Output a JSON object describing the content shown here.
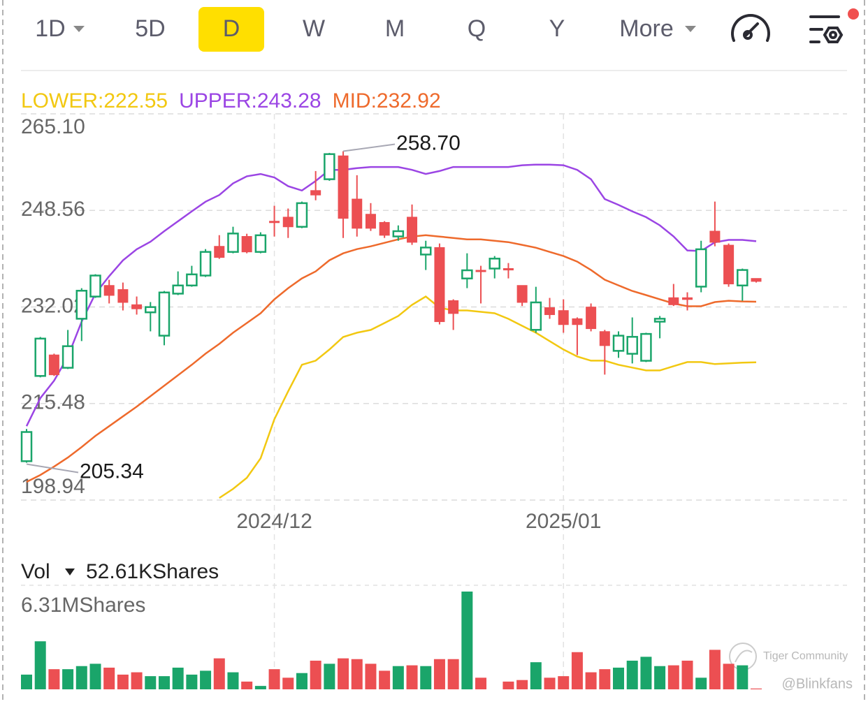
{
  "toolbar": {
    "tabs": [
      "1D",
      "5D",
      "D",
      "W",
      "M",
      "Q",
      "Y",
      "More"
    ],
    "active_tab": "D"
  },
  "watermark": {
    "brand": "Tiger Community",
    "user": "@Blinkfans"
  },
  "chart_data": [
    {
      "type": "candlestick",
      "categories": [
        null,
        null,
        null,
        null,
        null,
        null,
        null,
        null,
        null,
        null,
        null,
        null,
        null,
        null,
        null,
        null,
        null,
        null,
        "2024/12",
        null,
        null,
        null,
        null,
        null,
        null,
        null,
        null,
        null,
        null,
        null,
        null,
        null,
        null,
        null,
        null,
        null,
        null,
        null,
        null,
        "2025/01",
        null,
        null,
        null,
        null,
        null,
        null,
        null,
        null,
        null,
        null,
        null,
        null,
        null,
        null
      ],
      "open": [
        205.6,
        220.2,
        223.8,
        221.6,
        230.0,
        233.8,
        235.7,
        235.0,
        232.4,
        231.1,
        227.1,
        234.3,
        235.7,
        237.4,
        242.4,
        241.45,
        244.1,
        241.45,
        246.7,
        247.4,
        245.75,
        251.96,
        253.9,
        257.9,
        250.5,
        247.9,
        246.5,
        244.1,
        247.4,
        241.0,
        242.2,
        233.1,
        236.9,
        238.3,
        238.6,
        238.6,
        235.7,
        228.1,
        231.9,
        231.4,
        230.0,
        232.0,
        227.8,
        224.5,
        224.0,
        222.8,
        229.5,
        233.6,
        233.6,
        235.5,
        245.0,
        242.6,
        235.7,
        236.9
      ],
      "high": [
        211.12,
        226.88,
        224.02,
        228.08,
        235.24,
        237.63,
        236.67,
        236.2,
        233.81,
        232.86,
        234.76,
        238.11,
        239.07,
        241.93,
        244.32,
        245.76,
        244.56,
        244.81,
        249.35,
        248.88,
        250.07,
        255.3,
        258.41,
        258.7,
        254.59,
        249.81,
        246.71,
        245.99,
        249.57,
        243.36,
        242.89,
        233.33,
        241.21,
        239.07,
        240.74,
        239.54,
        235.72,
        235.48,
        233.57,
        233.33,
        230.23,
        232.62,
        228.08,
        227.84,
        230.23,
        227.6,
        230.47,
        235.96,
        234.53,
        243.36,
        250.07,
        242.89,
        238.59,
        236.91
      ],
      "low": [
        205.34,
        219.96,
        220.2,
        221.39,
        226.17,
        233.57,
        232.62,
        231.42,
        230.71,
        227.84,
        225.45,
        234.05,
        235.48,
        237.15,
        240.26,
        241.21,
        241.21,
        241.21,
        244.08,
        243.84,
        245.52,
        250.29,
        253.63,
        243.84,
        244.08,
        245.04,
        243.84,
        243.36,
        242.65,
        238.35,
        229.03,
        228.08,
        235.24,
        232.62,
        236.91,
        236.91,
        232.18,
        227.6,
        229.99,
        227.6,
        223.78,
        227.84,
        220.43,
        223.3,
        222.35,
        222.58,
        226.65,
        232.18,
        231.42,
        234.53,
        242.41,
        235.48,
        233.09,
        236.2
      ],
      "close": [
        210.6,
        226.6,
        220.4,
        225.3,
        234.8,
        237.4,
        234.0,
        232.8,
        231.7,
        232.0,
        234.5,
        235.7,
        237.6,
        241.45,
        240.5,
        244.6,
        241.45,
        244.3,
        246.5,
        245.75,
        249.8,
        251.2,
        258.2,
        247.2,
        245.5,
        245.5,
        244.3,
        245.0,
        243.1,
        242.2,
        229.5,
        230.9,
        238.3,
        238.1,
        240.3,
        238.35,
        232.8,
        232.8,
        230.7,
        229.0,
        229.0,
        228.3,
        225.4,
        227.1,
        226.9,
        227.4,
        230.0,
        232.4,
        233.3,
        241.9,
        243.1,
        235.96,
        238.35,
        236.4
      ],
      "high_label": "258.70",
      "up_color": "#1aa56a",
      "down_color": "#ec4f52",
      "series": [
        {
          "name": "LOWER:",
          "color": "#f2c811",
          "values": [
            null,
            null,
            null,
            null,
            null,
            null,
            null,
            null,
            null,
            null,
            null,
            null,
            null,
            null,
            199.3,
            200.85,
            202.76,
            206.1,
            212.79,
            217.57,
            222.11,
            222.82,
            224.73,
            226.88,
            227.6,
            228.08,
            229.27,
            230.47,
            232.38,
            233.81,
            231.9,
            231.42,
            231.42,
            231.18,
            230.94,
            229.99,
            228.79,
            227.6,
            226.17,
            224.73,
            223.54,
            222.82,
            222.82,
            222.11,
            221.63,
            221.15,
            221.15,
            221.87,
            222.58,
            222.58,
            222.23,
            222.35,
            222.47,
            222.55
          ]
        },
        {
          "name": "UPPER:",
          "color": "#9b45e4",
          "values": [
            211.6,
            216.4,
            219.4,
            223.5,
            229.5,
            234.3,
            237.3,
            240.0,
            241.9,
            243.2,
            245.0,
            246.7,
            248.4,
            250.05,
            251.2,
            253.2,
            254.4,
            254.8,
            254.2,
            252.7,
            251.96,
            253.6,
            255.5,
            255.5,
            255.8,
            256.0,
            256.0,
            256.0,
            255.5,
            254.8,
            255.3,
            256.0,
            256.0,
            256.0,
            256.0,
            256.0,
            256.3,
            256.4,
            256.4,
            256.3,
            255.5,
            253.9,
            250.5,
            249.5,
            248.4,
            247.4,
            246.0,
            244.1,
            241.7,
            241.6,
            243.1,
            243.5,
            243.5,
            243.28
          ]
        },
        {
          "name": "MID:",
          "color": "#ee6a2c",
          "values": [
            202.05,
            203.24,
            204.67,
            206.22,
            208.02,
            209.93,
            211.6,
            213.27,
            214.94,
            216.73,
            218.52,
            220.32,
            222.11,
            224.02,
            225.69,
            227.6,
            229.27,
            230.94,
            233.33,
            235.24,
            236.91,
            238.11,
            240.02,
            241.21,
            241.93,
            242.41,
            243.0,
            243.6,
            244.08,
            244.32,
            244.08,
            243.84,
            243.6,
            243.6,
            243.36,
            243.12,
            242.65,
            242.17,
            241.45,
            240.74,
            239.78,
            238.35,
            236.68,
            235.72,
            234.76,
            234.05,
            233.33,
            232.62,
            232.14,
            232.14,
            232.86,
            233.09,
            232.97,
            232.92
          ]
        }
      ],
      "ylim": [
        198.94,
        265.1
      ],
      "yticks": [
        {
          "value": 265.1,
          "label": "265.10"
        },
        248.56,
        232.02,
        215.48,
        198.94
      ],
      "grid": true
    },
    {
      "type": "bar",
      "title": "Vol",
      "values": [
        0.95,
        3.1,
        1.3,
        1.3,
        1.5,
        1.65,
        1.4,
        0.95,
        1.1,
        0.85,
        0.85,
        1.4,
        0.95,
        1.2,
        2.0,
        1.1,
        0.5,
        0.22,
        1.3,
        0.75,
        1.05,
        1.85,
        1.65,
        2.0,
        1.95,
        1.65,
        1.2,
        1.5,
        1.55,
        1.5,
        1.95,
        1.95,
        6.31,
        0.75,
        null,
        0.5,
        0.6,
        1.75,
        0.75,
        0.85,
        2.4,
        1.1,
        1.3,
        1.4,
        1.85,
        2.1,
        1.5,
        1.55,
        1.85,
        0.75,
        2.55,
        1.65,
        1.55,
        0.05261
      ],
      "value_labels": [
        null,
        null,
        null,
        null,
        null,
        null,
        null,
        null,
        null,
        null,
        null,
        null,
        null,
        null,
        null,
        null,
        null,
        null,
        null,
        null,
        null,
        null,
        null,
        null,
        null,
        null,
        null,
        null,
        null,
        null,
        null,
        null,
        null,
        null,
        null,
        null,
        null,
        null,
        null,
        null,
        null,
        null,
        null,
        null,
        null,
        null,
        null,
        null,
        null,
        null,
        null,
        null,
        null,
        "52.61KShares"
      ],
      "ylim": [
        0,
        6.31
      ],
      "yticks": [
        {
          "value": 6.31,
          "label": "6.31MShares"
        }
      ]
    }
  ]
}
